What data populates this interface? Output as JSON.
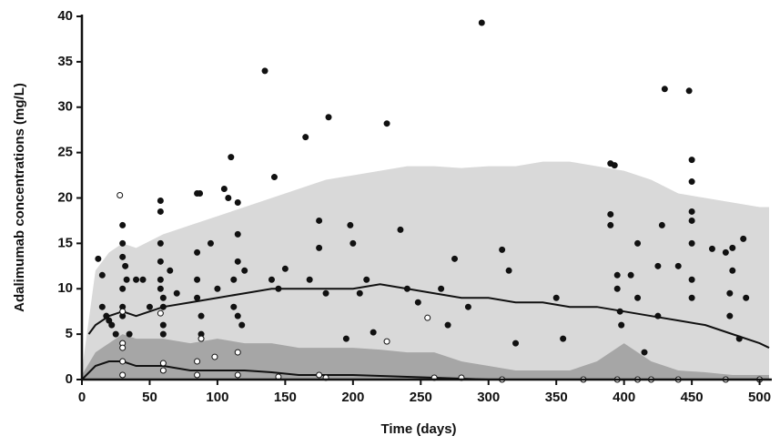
{
  "chart_data": {
    "type": "scatter",
    "x_label": "Time (days)",
    "y_label": "Adalimumab concentrations (mg/L)",
    "xlim": [
      0,
      507
    ],
    "ylim": [
      0,
      40
    ],
    "xticks": [
      0,
      50,
      100,
      150,
      200,
      250,
      300,
      350,
      400,
      450,
      500
    ],
    "yticks": [
      0,
      5,
      10,
      15,
      20,
      25,
      30,
      35,
      40
    ],
    "series": [
      {
        "type": "area",
        "color": "#d9d9d9",
        "x": [
          0,
          10,
          20,
          30,
          40,
          60,
          80,
          100,
          120,
          140,
          160,
          180,
          200,
          220,
          240,
          260,
          280,
          300,
          320,
          340,
          360,
          380,
          400,
          420,
          440,
          460,
          480,
          500,
          507
        ],
        "values": [
          1,
          12,
          14,
          15,
          14.5,
          16,
          17,
          18,
          19,
          20,
          21,
          22,
          22.5,
          23,
          23.5,
          23.5,
          23.3,
          23.5,
          23.5,
          24,
          24,
          23.5,
          23,
          22,
          20.5,
          20,
          19.5,
          19,
          19
        ]
      },
      {
        "type": "area",
        "color": "#a6a6a6",
        "x": [
          0,
          10,
          20,
          30,
          40,
          60,
          80,
          100,
          120,
          140,
          160,
          180,
          200,
          220,
          240,
          260,
          280,
          300,
          320,
          340,
          360,
          380,
          400,
          420,
          440,
          460,
          480,
          500,
          507
        ],
        "values": [
          0.5,
          3,
          4,
          5,
          4.5,
          4.5,
          4,
          4.5,
          4,
          4,
          3.5,
          3.5,
          3.5,
          3.3,
          3,
          3,
          2,
          1.5,
          1,
          1,
          1,
          2,
          4,
          2,
          1,
          0.8,
          0.5,
          0.5,
          0.5
        ]
      },
      {
        "type": "line",
        "color": "#111111",
        "x": [
          5,
          10,
          20,
          30,
          40,
          60,
          80,
          100,
          120,
          140,
          160,
          180,
          200,
          220,
          240,
          260,
          280,
          300,
          320,
          340,
          360,
          380,
          400,
          420,
          440,
          460,
          480,
          500,
          507
        ],
        "values": [
          5,
          6,
          7,
          7.5,
          7,
          8,
          8.5,
          9,
          9.5,
          10,
          10,
          10,
          10,
          10.5,
          10,
          9.5,
          9,
          9,
          8.5,
          8.5,
          8,
          8,
          7.5,
          7,
          6.5,
          6,
          5,
          4,
          3.5
        ]
      },
      {
        "type": "line",
        "color": "#111111",
        "x": [
          0,
          10,
          20,
          30,
          40,
          60,
          80,
          100,
          120,
          140,
          160,
          180,
          200,
          220,
          240,
          260,
          280,
          300,
          320,
          340,
          360,
          380,
          400,
          420,
          440,
          460,
          480,
          500,
          507
        ],
        "values": [
          0,
          1.5,
          2,
          2,
          1.5,
          1.5,
          1,
          1,
          1,
          0.8,
          0.5,
          0.5,
          0.5,
          0.4,
          0.3,
          0.2,
          0.1,
          0,
          0,
          0,
          0,
          0,
          0,
          0,
          0,
          0,
          0,
          0,
          0
        ]
      },
      {
        "type": "scatter",
        "color": "#111111",
        "edge": "#111111",
        "x": [
          12,
          15,
          15,
          18,
          20,
          22,
          25,
          30,
          30,
          30,
          32,
          33,
          30,
          30,
          30,
          35,
          40,
          45,
          50,
          58,
          58,
          58,
          58,
          58,
          58,
          60,
          60,
          60,
          60,
          65,
          70,
          85,
          87,
          85,
          85,
          85,
          88,
          88,
          95,
          100,
          105,
          108,
          110,
          115,
          115,
          115,
          112,
          112,
          115,
          118,
          120,
          135,
          140,
          142,
          145,
          150,
          165,
          168,
          175,
          175,
          180,
          182,
          195,
          198,
          200,
          205,
          210,
          215,
          225,
          235,
          240,
          248,
          265,
          270,
          275,
          285,
          295,
          310,
          315,
          320,
          350,
          355,
          390,
          393,
          390,
          390,
          395,
          395,
          397,
          398,
          405,
          410,
          410,
          415,
          425,
          428,
          425,
          430,
          440,
          448,
          450,
          450,
          450,
          450,
          450,
          450,
          450,
          465,
          475,
          478,
          478,
          480,
          480,
          485,
          488,
          490
        ],
        "values": [
          13.3,
          11.5,
          8,
          7,
          6.5,
          6,
          5,
          17,
          15,
          13.5,
          12.5,
          11,
          10,
          8,
          7,
          5,
          11,
          11,
          8,
          19.7,
          18.5,
          15,
          13,
          11,
          10,
          9,
          8,
          6,
          5,
          12,
          9.5,
          20.5,
          20.5,
          14,
          11,
          9,
          7,
          5,
          15,
          10,
          21,
          20,
          24.5,
          19.5,
          16,
          13,
          11,
          8,
          7,
          6,
          12,
          34,
          11,
          22.3,
          10,
          12.2,
          26.7,
          11,
          17.5,
          14.5,
          9.5,
          28.9,
          4.5,
          17,
          15,
          9.5,
          11,
          5.2,
          28.2,
          16.5,
          10,
          8.5,
          10,
          6,
          13.3,
          8,
          39.3,
          14.3,
          12,
          4,
          9,
          4.5,
          23.8,
          23.6,
          18.2,
          17,
          11.5,
          10,
          7.5,
          6,
          11.5,
          15,
          9,
          3,
          12.5,
          17,
          7,
          32,
          12.5,
          31.8,
          24.2,
          21.8,
          18.5,
          17.5,
          15,
          11,
          9,
          14.4,
          14,
          9.5,
          7,
          14.5,
          12,
          4.5,
          15.5,
          9
        ]
      },
      {
        "type": "scatter",
        "color": "#ffffff",
        "edge": "#111111",
        "x": [
          28,
          30,
          30,
          30,
          30,
          30,
          58,
          60,
          60,
          88,
          85,
          85,
          98,
          115,
          115,
          145,
          175,
          180,
          225,
          255,
          260,
          280,
          310,
          370,
          395,
          410,
          420,
          440,
          475,
          500
        ],
        "values": [
          20.3,
          7.5,
          4,
          3.5,
          2,
          0.5,
          7.3,
          1.8,
          1,
          4.5,
          2,
          0.5,
          2.5,
          3,
          0.5,
          0.3,
          0.5,
          0.2,
          4.2,
          6.8,
          0.2,
          0.2,
          0,
          0,
          0,
          0,
          0,
          0,
          0,
          0
        ]
      }
    ]
  }
}
